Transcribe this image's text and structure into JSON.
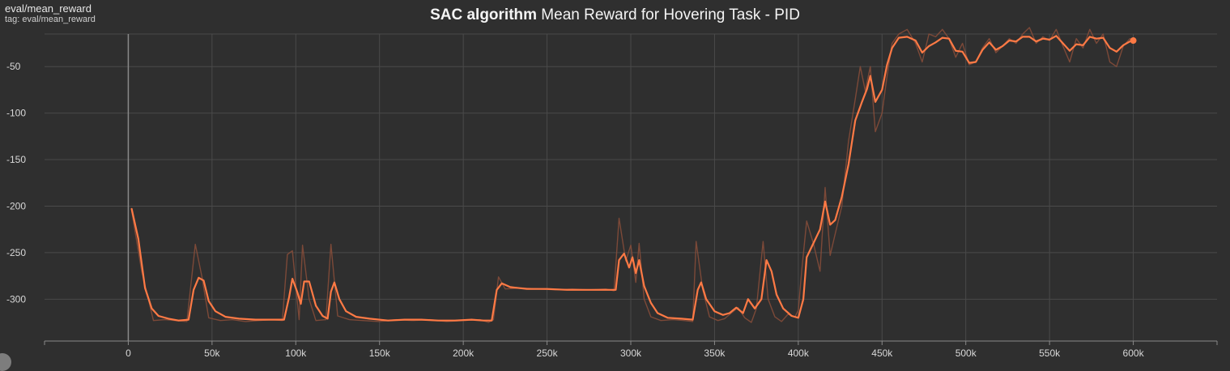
{
  "header": {
    "tag_name": "eval/mean_reward",
    "tag_subtitle": "tag: eval/mean_reward"
  },
  "chart_data": {
    "type": "line",
    "title_bold": "SAC algorithm",
    "title_rest": " Mean Reward for Hovering Task - PID",
    "xlabel": "",
    "ylabel": "",
    "xlim": [
      -50000,
      650000
    ],
    "ylim": [
      -345,
      -15
    ],
    "x_ticks": [
      0,
      50000,
      100000,
      150000,
      200000,
      250000,
      300000,
      350000,
      400000,
      450000,
      500000,
      550000,
      600000
    ],
    "x_tick_labels": [
      "0",
      "50k",
      "100k",
      "150k",
      "200k",
      "250k",
      "300k",
      "350k",
      "400k",
      "450k",
      "500k",
      "550k",
      "600k"
    ],
    "y_ticks": [
      -50,
      -100,
      -150,
      -200,
      -250,
      -300
    ],
    "y_tick_labels": [
      "-50",
      "-100",
      "-150",
      "-200",
      "-250",
      "-300"
    ],
    "grid": true,
    "colors": {
      "background": "#2f2f2f",
      "grid": "#4a4a4a",
      "axis": "#8a8a8a",
      "raw": "#8a4e3a",
      "smoothed": "#ff7a45"
    },
    "series": [
      {
        "style": "raw",
        "points": [
          [
            2000,
            -205
          ],
          [
            8000,
            -270
          ],
          [
            15000,
            -323
          ],
          [
            22000,
            -322
          ],
          [
            28000,
            -323
          ],
          [
            35000,
            -324
          ],
          [
            40000,
            -241
          ],
          [
            44000,
            -276
          ],
          [
            48000,
            -320
          ],
          [
            55000,
            -323
          ],
          [
            62000,
            -322
          ],
          [
            70000,
            -324
          ],
          [
            78000,
            -323
          ],
          [
            86000,
            -322
          ],
          [
            92000,
            -323
          ],
          [
            95000,
            -252
          ],
          [
            98000,
            -248
          ],
          [
            102000,
            -322
          ],
          [
            104000,
            -242
          ],
          [
            108000,
            -300
          ],
          [
            112000,
            -323
          ],
          [
            118000,
            -322
          ],
          [
            121000,
            -241
          ],
          [
            125000,
            -318
          ],
          [
            132000,
            -322
          ],
          [
            140000,
            -323
          ],
          [
            150000,
            -324
          ],
          [
            160000,
            -322
          ],
          [
            170000,
            -323
          ],
          [
            180000,
            -322
          ],
          [
            190000,
            -324
          ],
          [
            200000,
            -323
          ],
          [
            210000,
            -322
          ],
          [
            215000,
            -325
          ],
          [
            218000,
            -322
          ],
          [
            221000,
            -276
          ],
          [
            225000,
            -289
          ],
          [
            235000,
            -288
          ],
          [
            245000,
            -289
          ],
          [
            255000,
            -290
          ],
          [
            265000,
            -289
          ],
          [
            275000,
            -290
          ],
          [
            285000,
            -289
          ],
          [
            290000,
            -291
          ],
          [
            293000,
            -213
          ],
          [
            297000,
            -259
          ],
          [
            300000,
            -242
          ],
          [
            303000,
            -282
          ],
          [
            305000,
            -240
          ],
          [
            308000,
            -300
          ],
          [
            312000,
            -319
          ],
          [
            318000,
            -323
          ],
          [
            325000,
            -322
          ],
          [
            332000,
            -323
          ],
          [
            337000,
            -324
          ],
          [
            339000,
            -238
          ],
          [
            343000,
            -290
          ],
          [
            347000,
            -319
          ],
          [
            352000,
            -323
          ],
          [
            356000,
            -321
          ],
          [
            360000,
            -315
          ],
          [
            364000,
            -309
          ],
          [
            368000,
            -320
          ],
          [
            372000,
            -325
          ],
          [
            375000,
            -310
          ],
          [
            379000,
            -238
          ],
          [
            382000,
            -300
          ],
          [
            386000,
            -319
          ],
          [
            390000,
            -324
          ],
          [
            394000,
            -316
          ],
          [
            398000,
            -319
          ],
          [
            400000,
            -312
          ],
          [
            402000,
            -270
          ],
          [
            405000,
            -216
          ],
          [
            409000,
            -240
          ],
          [
            413000,
            -270
          ],
          [
            416000,
            -180
          ],
          [
            419000,
            -253
          ],
          [
            422000,
            -230
          ],
          [
            426000,
            -200
          ],
          [
            430000,
            -130
          ],
          [
            434000,
            -85
          ],
          [
            437000,
            -50
          ],
          [
            440000,
            -76
          ],
          [
            443000,
            -50
          ],
          [
            446000,
            -120
          ],
          [
            450000,
            -100
          ],
          [
            453000,
            -60
          ],
          [
            456000,
            -25
          ],
          [
            460000,
            -15
          ],
          [
            465000,
            -10
          ],
          [
            470000,
            -25
          ],
          [
            474000,
            -45
          ],
          [
            478000,
            -15
          ],
          [
            482000,
            -18
          ],
          [
            486000,
            -10
          ],
          [
            490000,
            -20
          ],
          [
            494000,
            -40
          ],
          [
            498000,
            -25
          ],
          [
            502000,
            -48
          ],
          [
            506000,
            -45
          ],
          [
            510000,
            -30
          ],
          [
            514000,
            -20
          ],
          [
            518000,
            -35
          ],
          [
            522000,
            -28
          ],
          [
            526000,
            -20
          ],
          [
            530000,
            -25
          ],
          [
            534000,
            -15
          ],
          [
            538000,
            -8
          ],
          [
            542000,
            -25
          ],
          [
            546000,
            -18
          ],
          [
            550000,
            -22
          ],
          [
            554000,
            -10
          ],
          [
            558000,
            -28
          ],
          [
            562000,
            -45
          ],
          [
            566000,
            -20
          ],
          [
            570000,
            -30
          ],
          [
            574000,
            -10
          ],
          [
            578000,
            -25
          ],
          [
            582000,
            -15
          ],
          [
            586000,
            -45
          ],
          [
            590000,
            -50
          ],
          [
            594000,
            -28
          ],
          [
            598000,
            -20
          ],
          [
            600000,
            -22
          ]
        ]
      },
      {
        "style": "smoothed",
        "points": [
          [
            2000,
            -203
          ],
          [
            6000,
            -235
          ],
          [
            10000,
            -288
          ],
          [
            14000,
            -310
          ],
          [
            18000,
            -318
          ],
          [
            24000,
            -321
          ],
          [
            30000,
            -323
          ],
          [
            36000,
            -322
          ],
          [
            39000,
            -290
          ],
          [
            42000,
            -277
          ],
          [
            45000,
            -280
          ],
          [
            48000,
            -302
          ],
          [
            52000,
            -313
          ],
          [
            58000,
            -319
          ],
          [
            66000,
            -321
          ],
          [
            76000,
            -322
          ],
          [
            86000,
            -322
          ],
          [
            93000,
            -322
          ],
          [
            96000,
            -298
          ],
          [
            98000,
            -278
          ],
          [
            101000,
            -293
          ],
          [
            103000,
            -305
          ],
          [
            105000,
            -281
          ],
          [
            108000,
            -281
          ],
          [
            112000,
            -307
          ],
          [
            116000,
            -318
          ],
          [
            119000,
            -321
          ],
          [
            121000,
            -292
          ],
          [
            123000,
            -282
          ],
          [
            126000,
            -300
          ],
          [
            130000,
            -313
          ],
          [
            136000,
            -319
          ],
          [
            144000,
            -321
          ],
          [
            155000,
            -323
          ],
          [
            165000,
            -322
          ],
          [
            175000,
            -322
          ],
          [
            185000,
            -323
          ],
          [
            195000,
            -323
          ],
          [
            205000,
            -322
          ],
          [
            212000,
            -323
          ],
          [
            217000,
            -323
          ],
          [
            220000,
            -290
          ],
          [
            223000,
            -283
          ],
          [
            228000,
            -287
          ],
          [
            238000,
            -289
          ],
          [
            250000,
            -289
          ],
          [
            262000,
            -290
          ],
          [
            275000,
            -290
          ],
          [
            285000,
            -290
          ],
          [
            291000,
            -290
          ],
          [
            293000,
            -258
          ],
          [
            296000,
            -251
          ],
          [
            299000,
            -266
          ],
          [
            301000,
            -255
          ],
          [
            303000,
            -272
          ],
          [
            305000,
            -258
          ],
          [
            308000,
            -286
          ],
          [
            312000,
            -304
          ],
          [
            316000,
            -315
          ],
          [
            322000,
            -320
          ],
          [
            330000,
            -321
          ],
          [
            337000,
            -322
          ],
          [
            340000,
            -290
          ],
          [
            342000,
            -282
          ],
          [
            345000,
            -300
          ],
          [
            350000,
            -313
          ],
          [
            355000,
            -317
          ],
          [
            359000,
            -315
          ],
          [
            363000,
            -309
          ],
          [
            367000,
            -315
          ],
          [
            370000,
            -300
          ],
          [
            374000,
            -310
          ],
          [
            378000,
            -300
          ],
          [
            381000,
            -258
          ],
          [
            384000,
            -270
          ],
          [
            387000,
            -295
          ],
          [
            391000,
            -310
          ],
          [
            396000,
            -318
          ],
          [
            400000,
            -320
          ],
          [
            403000,
            -300
          ],
          [
            405000,
            -255
          ],
          [
            409000,
            -240
          ],
          [
            413000,
            -225
          ],
          [
            416000,
            -195
          ],
          [
            419000,
            -220
          ],
          [
            422000,
            -215
          ],
          [
            426000,
            -190
          ],
          [
            430000,
            -155
          ],
          [
            434000,
            -108
          ],
          [
            438000,
            -88
          ],
          [
            441000,
            -74
          ],
          [
            443000,
            -60
          ],
          [
            446000,
            -88
          ],
          [
            450000,
            -75
          ],
          [
            453000,
            -48
          ],
          [
            456000,
            -30
          ],
          [
            460000,
            -19
          ],
          [
            465000,
            -18
          ],
          [
            470000,
            -22
          ],
          [
            474000,
            -35
          ],
          [
            478000,
            -28
          ],
          [
            482000,
            -24
          ],
          [
            486000,
            -19
          ],
          [
            490000,
            -20
          ],
          [
            494000,
            -33
          ],
          [
            498000,
            -34
          ],
          [
            502000,
            -46
          ],
          [
            506000,
            -45
          ],
          [
            510000,
            -32
          ],
          [
            514000,
            -24
          ],
          [
            518000,
            -32
          ],
          [
            522000,
            -28
          ],
          [
            526000,
            -22
          ],
          [
            530000,
            -23
          ],
          [
            534000,
            -18
          ],
          [
            538000,
            -18
          ],
          [
            542000,
            -23
          ],
          [
            546000,
            -20
          ],
          [
            550000,
            -21
          ],
          [
            554000,
            -17
          ],
          [
            558000,
            -25
          ],
          [
            562000,
            -33
          ],
          [
            566000,
            -26
          ],
          [
            570000,
            -27
          ],
          [
            574000,
            -18
          ],
          [
            578000,
            -20
          ],
          [
            582000,
            -19
          ],
          [
            586000,
            -30
          ],
          [
            590000,
            -34
          ],
          [
            594000,
            -27
          ],
          [
            598000,
            -23
          ],
          [
            600000,
            -22
          ]
        ]
      }
    ]
  }
}
